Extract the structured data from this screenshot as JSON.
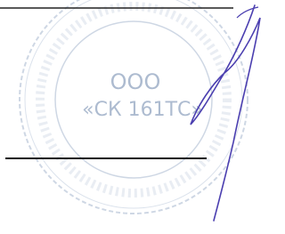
{
  "stamp": {
    "line1": "ООО",
    "line2": "«СК 161ТС»"
  }
}
